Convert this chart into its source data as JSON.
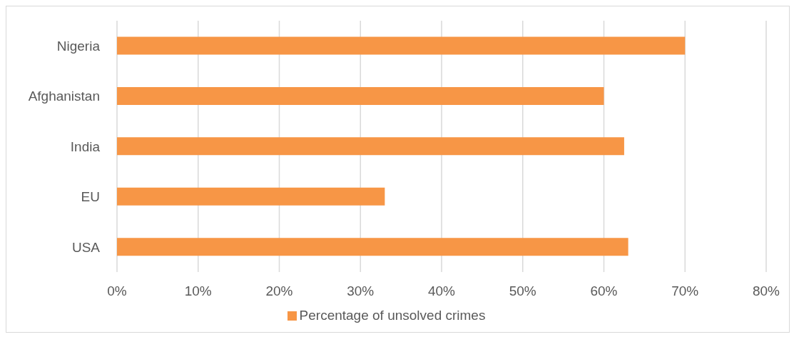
{
  "chart_data": {
    "type": "bar",
    "orientation": "horizontal",
    "categories": [
      "Nigeria",
      "Afghanistan",
      "India",
      "EU",
      "USA"
    ],
    "series": [
      {
        "name": "Percentage of unsolved crimes",
        "color": "#f79646",
        "values": [
          70,
          60,
          62.5,
          33,
          63
        ]
      }
    ],
    "xlim": [
      0,
      80
    ],
    "xticks": [
      {
        "value": 0,
        "label": "0%"
      },
      {
        "value": 10,
        "label": "10%"
      },
      {
        "value": 20,
        "label": "20%"
      },
      {
        "value": 30,
        "label": "30%"
      },
      {
        "value": 40,
        "label": "40%"
      },
      {
        "value": 50,
        "label": "50%"
      },
      {
        "value": 60,
        "label": "60%"
      },
      {
        "value": 70,
        "label": "70%"
      },
      {
        "value": 80,
        "label": "80%"
      }
    ],
    "grid": "x",
    "legend": "bottom"
  }
}
